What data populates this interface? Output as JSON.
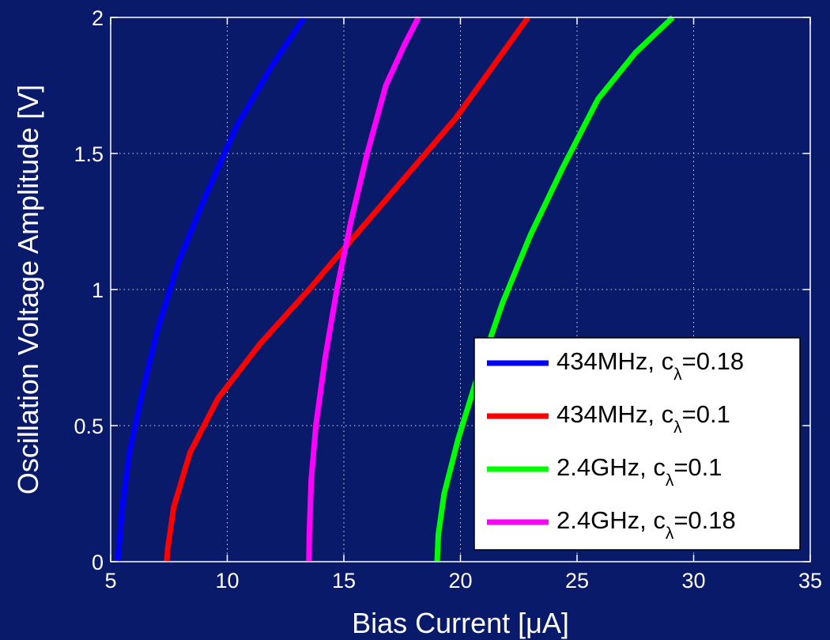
{
  "colors": {
    "background": "#0a1a6b",
    "plot_background": "#0a1a6b",
    "axis": "#ffffff",
    "grid": "#ffffff",
    "legend_background": "#ffffff",
    "legend_border": "#000000"
  },
  "chart_data": {
    "type": "line",
    "title": "",
    "xlabel": "Bias Current [μA]",
    "ylabel": "Oscillation Voltage Amplitude [V]",
    "xlim": [
      5,
      35
    ],
    "ylim": [
      0,
      2
    ],
    "xticks": [
      5,
      10,
      15,
      20,
      25,
      30,
      35
    ],
    "yticks": [
      0,
      0.5,
      1,
      1.5,
      2
    ],
    "xtick_labels": [
      "5",
      "10",
      "15",
      "20",
      "25",
      "30",
      "35"
    ],
    "ytick_labels": [
      "0",
      "0.5",
      "1",
      "1.5",
      "2"
    ],
    "grid": true,
    "grid_style": "dotted",
    "legend_position": "bottom-right",
    "series": [
      {
        "name": "434MHz, cλ=0.18",
        "label_main": "434MHz, c",
        "label_sub": "λ",
        "label_tail": "=0.18",
        "color": "#0000ff",
        "points": [
          [
            5.3,
            0.0
          ],
          [
            5.35,
            0.05
          ],
          [
            5.5,
            0.2
          ],
          [
            5.8,
            0.4
          ],
          [
            6.3,
            0.6
          ],
          [
            7.0,
            0.85
          ],
          [
            7.9,
            1.1
          ],
          [
            9.1,
            1.35
          ],
          [
            10.4,
            1.6
          ],
          [
            11.9,
            1.82
          ],
          [
            13.3,
            2.0
          ]
        ]
      },
      {
        "name": "434MHz, cλ=0.1",
        "label_main": "434MHz, c",
        "label_sub": "λ",
        "label_tail": "=0.1",
        "color": "#ff0000",
        "points": [
          [
            7.4,
            0.0
          ],
          [
            7.45,
            0.05
          ],
          [
            7.7,
            0.2
          ],
          [
            8.4,
            0.4
          ],
          [
            9.6,
            0.6
          ],
          [
            11.4,
            0.8
          ],
          [
            13.5,
            1.0
          ],
          [
            15.5,
            1.2
          ],
          [
            17.5,
            1.4
          ],
          [
            19.8,
            1.63
          ],
          [
            22.9,
            2.0
          ]
        ]
      },
      {
        "name": "2.4GHz, cλ=0.1",
        "label_main": "2.4GHz, c",
        "label_sub": "λ",
        "label_tail": "=0.1",
        "color": "#00ff00",
        "points": [
          [
            19.0,
            0.0
          ],
          [
            19.05,
            0.1
          ],
          [
            19.3,
            0.25
          ],
          [
            19.9,
            0.45
          ],
          [
            20.8,
            0.7
          ],
          [
            21.8,
            0.95
          ],
          [
            23.0,
            1.2
          ],
          [
            24.4,
            1.45
          ],
          [
            25.9,
            1.7
          ],
          [
            27.5,
            1.87
          ],
          [
            29.1,
            2.0
          ]
        ]
      },
      {
        "name": "2.4GHz, cλ=0.18",
        "label_main": "2.4GHz, c",
        "label_sub": "λ",
        "label_tail": "=0.18",
        "color": "#ff00ff",
        "points": [
          [
            13.5,
            0.0
          ],
          [
            13.52,
            0.1
          ],
          [
            13.6,
            0.3
          ],
          [
            13.8,
            0.5
          ],
          [
            14.2,
            0.75
          ],
          [
            14.7,
            1.0
          ],
          [
            15.3,
            1.25
          ],
          [
            16.0,
            1.5
          ],
          [
            16.8,
            1.75
          ],
          [
            17.6,
            1.9
          ],
          [
            18.2,
            2.0
          ]
        ]
      }
    ]
  }
}
